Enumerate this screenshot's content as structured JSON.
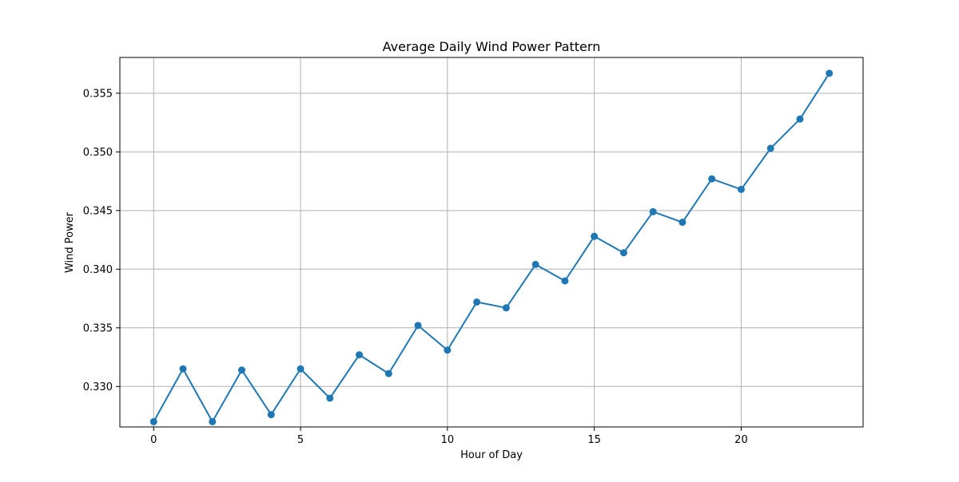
{
  "chart_data": {
    "type": "line",
    "title": "Average Daily Wind Power Pattern",
    "xlabel": "Hour of Day",
    "ylabel": "Wind Power",
    "x": [
      0,
      1,
      2,
      3,
      4,
      5,
      6,
      7,
      8,
      9,
      10,
      11,
      12,
      13,
      14,
      15,
      16,
      17,
      18,
      19,
      20,
      21,
      22,
      23
    ],
    "series": [
      {
        "values": [
          0.327,
          0.3315,
          0.327,
          0.3314,
          0.3276,
          0.3315,
          0.329,
          0.3327,
          0.3311,
          0.3352,
          0.3331,
          0.3372,
          0.3367,
          0.3404,
          0.339,
          0.3428,
          0.3414,
          0.3449,
          0.344,
          0.3477,
          0.3468,
          0.3503,
          0.3528,
          0.3567
        ],
        "color": "#1f77b4",
        "marker": "circle"
      }
    ],
    "xlim": [
      -1.15,
      24.15
    ],
    "ylim": [
      0.32655,
      0.35805
    ],
    "xticks": [
      0,
      5,
      10,
      15,
      20
    ],
    "xtick_labels": [
      "0",
      "5",
      "10",
      "15",
      "20"
    ],
    "yticks": [
      0.33,
      0.335,
      0.34,
      0.345,
      0.35,
      0.355
    ],
    "ytick_labels": [
      "0.330",
      "0.335",
      "0.340",
      "0.345",
      "0.350",
      "0.355"
    ],
    "grid": true
  }
}
